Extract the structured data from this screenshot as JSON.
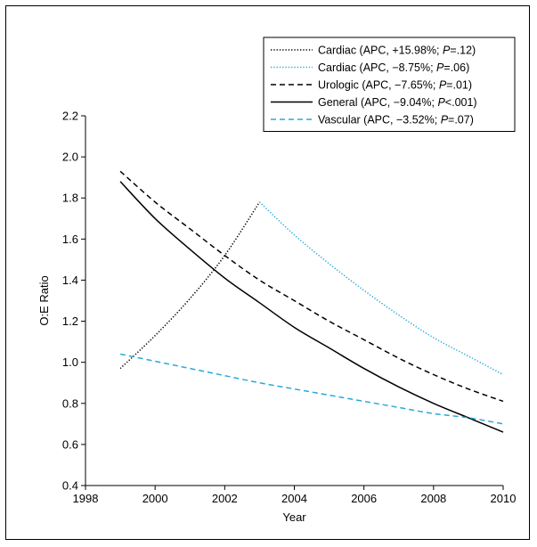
{
  "chart_data": {
    "type": "line",
    "xlabel": "Year",
    "ylabel": "O:E Ratio",
    "xlim": [
      1998,
      2010
    ],
    "ylim": [
      0.4,
      2.2
    ],
    "xticks": [
      "1998",
      "2000",
      "2002",
      "2004",
      "2006",
      "2008",
      "2010"
    ],
    "yticks": [
      "0.4",
      "0.6",
      "0.8",
      "1.0",
      "1.2",
      "1.4",
      "1.6",
      "1.8",
      "2.0",
      "2.2"
    ],
    "legend_position": "top-right",
    "series": [
      {
        "name": "Cardiac (APC, +15.98%; P=.12)",
        "legend": {
          "pre": "Cardiac (APC, +15.98%; ",
          "p": "P",
          "post": "=.12)"
        },
        "color": "#000000",
        "dash": "dotted",
        "x": [
          1999,
          2000,
          2001,
          2002,
          2003
        ],
        "y": [
          0.97,
          1.13,
          1.31,
          1.52,
          1.78
        ]
      },
      {
        "name": "Cardiac (APC, −8.75%; P=.06)",
        "legend": {
          "pre": "Cardiac (APC, −8.75%; ",
          "p": "P",
          "post": "=.06)"
        },
        "color": "#29a9d8",
        "dash": "dotted",
        "x": [
          2003,
          2004,
          2005,
          2006,
          2007,
          2008,
          2009,
          2010
        ],
        "y": [
          1.78,
          1.62,
          1.48,
          1.35,
          1.23,
          1.12,
          1.03,
          0.94
        ]
      },
      {
        "name": "Urologic (APC, −7.65%; P=.01)",
        "legend": {
          "pre": "Urologic (APC, −7.65%; ",
          "p": "P",
          "post": "=.01)"
        },
        "color": "#000000",
        "dash": "dashed",
        "x": [
          1999,
          2000,
          2001,
          2002,
          2003,
          2004,
          2005,
          2006,
          2007,
          2008,
          2009,
          2010
        ],
        "y": [
          1.93,
          1.78,
          1.65,
          1.52,
          1.4,
          1.3,
          1.2,
          1.11,
          1.02,
          0.94,
          0.87,
          0.81
        ]
      },
      {
        "name": "General (APC, −9.04%; P<.001)",
        "legend": {
          "pre": "General (APC, −9.04%; ",
          "p": "P",
          "post": "<.001)"
        },
        "color": "#000000",
        "dash": "solid",
        "x": [
          1999,
          2000,
          2001,
          2002,
          2003,
          2004,
          2005,
          2006,
          2007,
          2008,
          2009,
          2010
        ],
        "y": [
          1.88,
          1.7,
          1.55,
          1.41,
          1.29,
          1.17,
          1.07,
          0.97,
          0.88,
          0.8,
          0.73,
          0.66
        ]
      },
      {
        "name": "Vascular (APC, −3.52%; P=.07)",
        "legend": {
          "pre": "Vascular (APC, −3.52%; ",
          "p": "P",
          "post": "=.07)"
        },
        "color": "#29a9d8",
        "dash": "dashed",
        "x": [
          1999,
          2000,
          2001,
          2002,
          2003,
          2004,
          2005,
          2006,
          2007,
          2008,
          2009,
          2010
        ],
        "y": [
          1.04,
          1.005,
          0.97,
          0.935,
          0.9,
          0.87,
          0.84,
          0.81,
          0.78,
          0.75,
          0.73,
          0.7
        ]
      }
    ]
  }
}
